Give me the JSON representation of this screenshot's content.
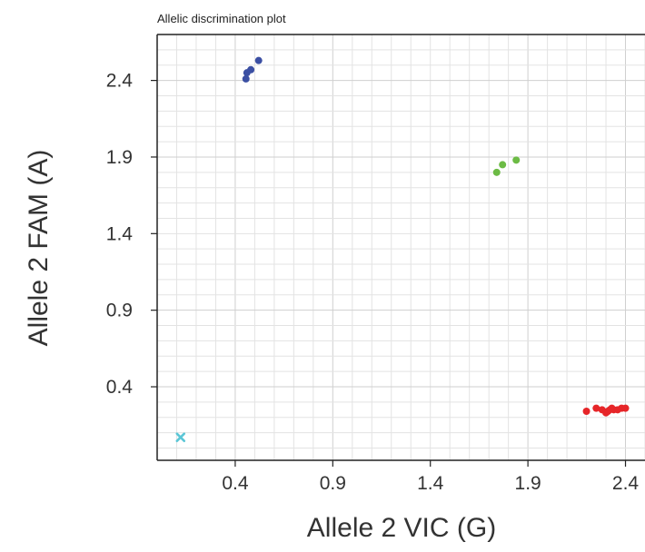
{
  "chart_data": {
    "type": "scatter",
    "title": "Allelic discrimination plot",
    "xlabel": "Allele 2 VIC (G)",
    "ylabel": "Allele 2 FAM (A)",
    "xlim": [
      0.0,
      2.5
    ],
    "ylim": [
      -0.08,
      2.7
    ],
    "xticks": [
      "0.4",
      "0.9",
      "1.4",
      "1.9",
      "2.4"
    ],
    "yticks": [
      "0.4",
      "0.9",
      "1.4",
      "1.9",
      "2.4"
    ],
    "grid": true,
    "legend": "none",
    "series": [
      {
        "color": "#3b4fa3",
        "marker": "circle",
        "points": [
          [
            0.455,
            2.41
          ],
          [
            0.46,
            2.45
          ],
          [
            0.48,
            2.47
          ],
          [
            0.52,
            2.53
          ]
        ]
      },
      {
        "color": "#6cbb45",
        "marker": "circle",
        "points": [
          [
            1.74,
            1.8
          ],
          [
            1.77,
            1.85
          ],
          [
            1.84,
            1.88
          ]
        ]
      },
      {
        "color": "#e62528",
        "marker": "circle",
        "points": [
          [
            2.2,
            0.24
          ],
          [
            2.25,
            0.26
          ],
          [
            2.28,
            0.25
          ],
          [
            2.3,
            0.23
          ],
          [
            2.31,
            0.24
          ],
          [
            2.32,
            0.25
          ],
          [
            2.33,
            0.26
          ],
          [
            2.34,
            0.25
          ],
          [
            2.36,
            0.25
          ],
          [
            2.38,
            0.26
          ],
          [
            2.4,
            0.26
          ]
        ]
      },
      {
        "color": "#5bc6d6",
        "marker": "x",
        "points": [
          [
            0.12,
            0.07
          ]
        ]
      }
    ]
  }
}
